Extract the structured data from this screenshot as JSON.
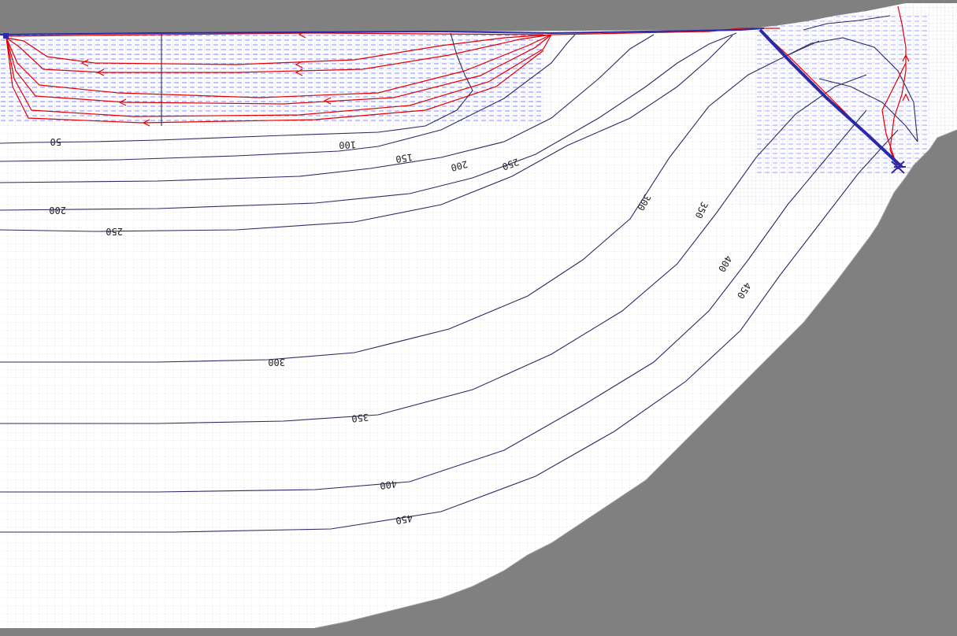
{
  "view": {
    "type": "groundwater-flow-model-section",
    "colors": {
      "background": "#808080",
      "active_domain": "#ffffff",
      "grid_lines": "#c8c8c8",
      "flow_vectors": "#3b3bff",
      "contours": "#2b2b66",
      "pathlines": "#e00000",
      "drain_feature": "#2a2aa8"
    }
  },
  "contours": [
    {
      "id": "c50-left",
      "label": "50"
    },
    {
      "id": "c100",
      "label": "100"
    },
    {
      "id": "c150",
      "label": "150"
    },
    {
      "id": "c200-upper",
      "label": "200"
    },
    {
      "id": "c250-upper",
      "label": "250"
    },
    {
      "id": "c200-left",
      "label": "200"
    },
    {
      "id": "c250-left",
      "label": "250"
    },
    {
      "id": "c300-upper",
      "label": "300"
    },
    {
      "id": "c350-upper",
      "label": "350"
    },
    {
      "id": "c400-upper",
      "label": "400"
    },
    {
      "id": "c450-upper",
      "label": "450"
    },
    {
      "id": "c300-lower",
      "label": "300"
    },
    {
      "id": "c350-lower",
      "label": "350"
    },
    {
      "id": "c400-lower",
      "label": "400"
    },
    {
      "id": "c450-lower",
      "label": "450"
    }
  ]
}
